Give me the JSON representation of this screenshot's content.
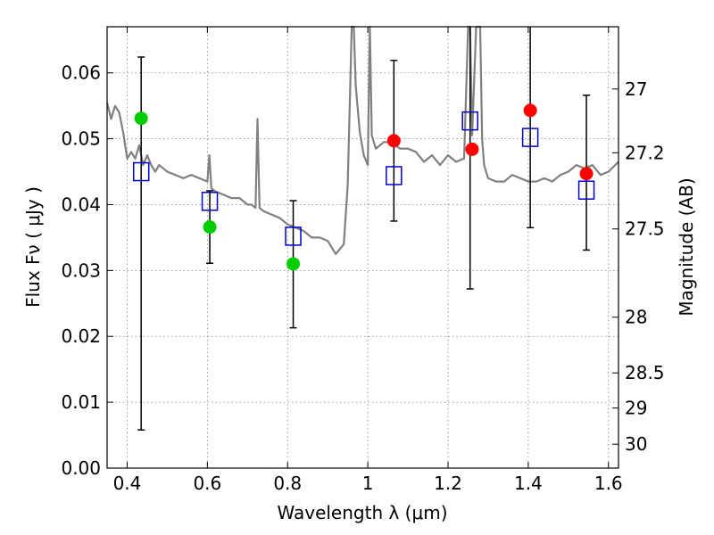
{
  "chart_data": {
    "type": "scatter",
    "title": "",
    "xlabel": "Wavelength  λ (μm)",
    "ylabel": "Flux  Fν  ( μJy )",
    "y2label": "Magnitude (AB)",
    "xlim": [
      0.35,
      1.625
    ],
    "ylim": [
      0.0,
      0.067
    ],
    "grid": true,
    "x_ticks": [
      {
        "value": 0.4,
        "label": "0.4"
      },
      {
        "value": 0.6,
        "label": "0.6"
      },
      {
        "value": 0.8,
        "label": "0.8"
      },
      {
        "value": 1.0,
        "label": "1"
      },
      {
        "value": 1.2,
        "label": "1.2"
      },
      {
        "value": 1.4,
        "label": "1.4"
      },
      {
        "value": 1.6,
        "label": "1.6"
      }
    ],
    "y_ticks": [
      {
        "value": 0.0,
        "label": "0.00"
      },
      {
        "value": 0.01,
        "label": "0.01"
      },
      {
        "value": 0.02,
        "label": "0.02"
      },
      {
        "value": 0.03,
        "label": "0.03"
      },
      {
        "value": 0.04,
        "label": "0.04"
      },
      {
        "value": 0.05,
        "label": "0.05"
      },
      {
        "value": 0.06,
        "label": "0.06"
      }
    ],
    "mag_ticks": [
      {
        "value": 27,
        "label": "27"
      },
      {
        "value": 27.2,
        "label": "27.2"
      },
      {
        "value": 27.5,
        "label": "27.5"
      },
      {
        "value": 28,
        "label": "28"
      },
      {
        "value": 28.5,
        "label": "28.5"
      },
      {
        "value": 29,
        "label": "29"
      },
      {
        "value": 30,
        "label": "30"
      }
    ],
    "colors": {
      "sed": "#808080",
      "green": "#00cc00",
      "red": "#ff0000",
      "model": "#0000cc",
      "errorbar": "#000000",
      "grid": "#808080"
    },
    "sed_spectrum": {
      "x": [
        0.35,
        0.36,
        0.37,
        0.375,
        0.38,
        0.39,
        0.4,
        0.41,
        0.42,
        0.43,
        0.44,
        0.45,
        0.46,
        0.47,
        0.48,
        0.49,
        0.5,
        0.52,
        0.54,
        0.56,
        0.58,
        0.6,
        0.605,
        0.61,
        0.62,
        0.64,
        0.66,
        0.68,
        0.7,
        0.71,
        0.72,
        0.725,
        0.73,
        0.74,
        0.76,
        0.78,
        0.8,
        0.82,
        0.84,
        0.86,
        0.88,
        0.9,
        0.92,
        0.94,
        0.95,
        0.96,
        0.965,
        0.97,
        0.98,
        0.99,
        1.0,
        1.005,
        1.01,
        1.02,
        1.04,
        1.06,
        1.08,
        1.1,
        1.12,
        1.14,
        1.16,
        1.18,
        1.2,
        1.22,
        1.24,
        1.25,
        1.255,
        1.26,
        1.27,
        1.28,
        1.285,
        1.29,
        1.3,
        1.32,
        1.34,
        1.36,
        1.38,
        1.4,
        1.42,
        1.44,
        1.46,
        1.48,
        1.5,
        1.52,
        1.54,
        1.56,
        1.58,
        1.6,
        1.625
      ],
      "y": [
        0.0555,
        0.053,
        0.055,
        0.0545,
        0.054,
        0.051,
        0.047,
        0.048,
        0.047,
        0.049,
        0.046,
        0.0475,
        0.046,
        0.045,
        0.046,
        0.0455,
        0.045,
        0.0445,
        0.044,
        0.0445,
        0.044,
        0.0435,
        0.0475,
        0.0425,
        0.042,
        0.0415,
        0.041,
        0.041,
        0.04,
        0.04,
        0.0395,
        0.053,
        0.0395,
        0.039,
        0.0385,
        0.038,
        0.037,
        0.0365,
        0.036,
        0.035,
        0.035,
        0.0345,
        0.0325,
        0.034,
        0.043,
        0.067,
        0.067,
        0.058,
        0.051,
        0.0475,
        0.046,
        0.067,
        0.0505,
        0.0485,
        0.0495,
        0.0495,
        0.0485,
        0.0485,
        0.048,
        0.0465,
        0.0475,
        0.046,
        0.0475,
        0.0465,
        0.047,
        0.067,
        0.067,
        0.0505,
        0.067,
        0.067,
        0.05,
        0.046,
        0.044,
        0.0435,
        0.0435,
        0.0445,
        0.044,
        0.0435,
        0.0435,
        0.044,
        0.0435,
        0.0445,
        0.045,
        0.046,
        0.0455,
        0.046,
        0.0445,
        0.045,
        0.0465
      ]
    },
    "observations": [
      {
        "x": 0.435,
        "y": 0.045,
        "err_low": 0.0058,
        "err_high": 0.0624
      },
      {
        "x": 0.606,
        "y": 0.0405,
        "err_low": 0.0311,
        "err_high": 0.0421
      },
      {
        "x": 0.814,
        "y": 0.0352,
        "err_low": 0.0213,
        "err_high": 0.0406
      },
      {
        "x": 1.065,
        "y": 0.0444,
        "err_low": 0.0375,
        "err_high": 0.0619
      },
      {
        "x": 1.255,
        "y": 0.0527,
        "err_low": 0.0272,
        "err_high": 0.067
      },
      {
        "x": 1.405,
        "y": 0.0502,
        "err_low": 0.0365,
        "err_high": 0.067
      },
      {
        "x": 1.545,
        "y": 0.0422,
        "err_low": 0.0331,
        "err_high": 0.0566
      }
    ],
    "green_points": [
      {
        "x": 0.435,
        "y": 0.0531
      },
      {
        "x": 0.606,
        "y": 0.0366
      },
      {
        "x": 0.814,
        "y": 0.031
      }
    ],
    "red_points": [
      {
        "x": 1.065,
        "y": 0.0497
      },
      {
        "x": 1.26,
        "y": 0.0484
      },
      {
        "x": 1.405,
        "y": 0.0543
      },
      {
        "x": 1.545,
        "y": 0.0447
      }
    ]
  }
}
